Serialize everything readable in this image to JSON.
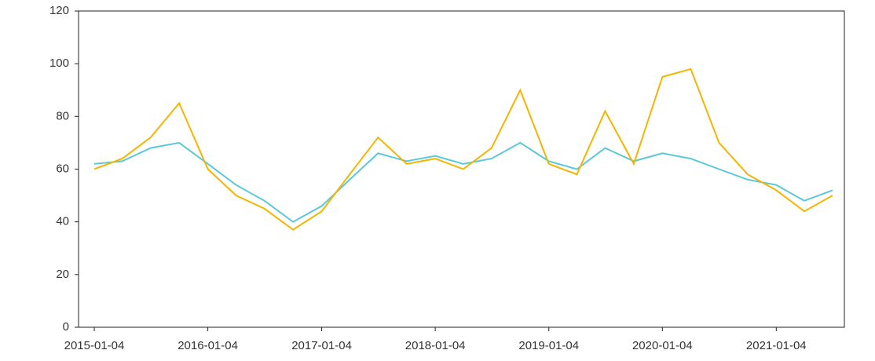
{
  "chart_data": {
    "type": "line",
    "x": [
      "2015-01-04",
      "2015-04-04",
      "2015-07-04",
      "2015-10-04",
      "2016-01-04",
      "2016-04-04",
      "2016-07-04",
      "2016-10-04",
      "2017-01-04",
      "2017-04-04",
      "2017-07-04",
      "2017-10-04",
      "2018-01-04",
      "2018-04-04",
      "2018-07-04",
      "2018-10-04",
      "2019-01-04",
      "2019-04-04",
      "2019-07-04",
      "2019-10-04",
      "2020-01-04",
      "2020-04-04",
      "2020-07-04",
      "2020-10-04",
      "2021-01-04",
      "2021-04-04",
      "2021-07-04"
    ],
    "series": [
      {
        "color": "#f5b400",
        "values": [
          60,
          64,
          72,
          85,
          60,
          50,
          45,
          37,
          44,
          58,
          72,
          62,
          64,
          60,
          68,
          90,
          62,
          58,
          82,
          62,
          95,
          98,
          70,
          58,
          52,
          44,
          50
        ]
      },
      {
        "color": "#5bc8d8",
        "values": [
          62,
          63,
          68,
          70,
          62,
          54,
          48,
          40,
          46,
          56,
          66,
          63,
          65,
          62,
          64,
          70,
          63,
          60,
          68,
          63,
          66,
          64,
          60,
          56,
          54,
          48,
          52
        ]
      }
    ],
    "xlim": [
      "2015-01-04",
      "2021-07-04"
    ],
    "xticks": [
      "2015-01-04",
      "2016-01-04",
      "2017-01-04",
      "2018-01-04",
      "2019-01-04",
      "2020-01-04",
      "2021-01-04"
    ],
    "ylim": [
      0,
      120
    ],
    "yticks": [
      0,
      20,
      40,
      60,
      80,
      100,
      120
    ]
  }
}
